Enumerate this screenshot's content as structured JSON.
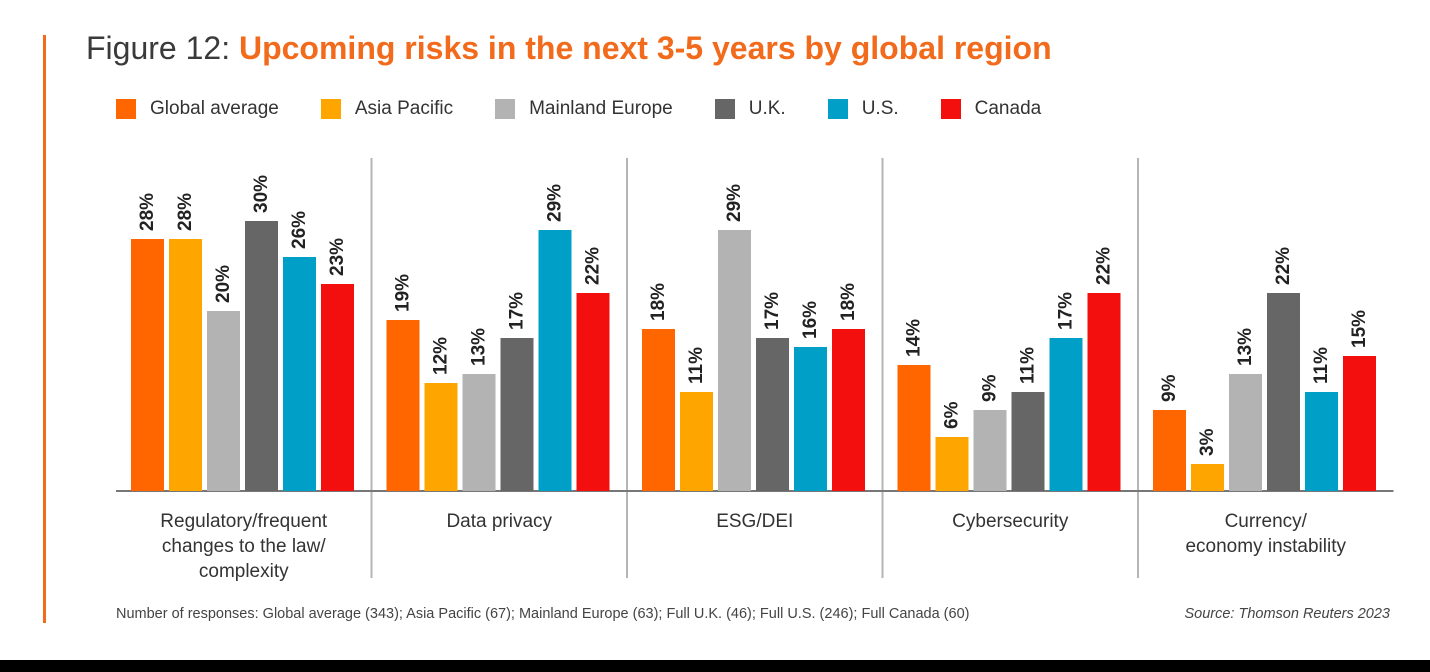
{
  "header": {
    "figure_label": "Figure 12:",
    "title": "Upcoming risks in the next 3-5 years by global region"
  },
  "colors": {
    "accent": "#f26a1b",
    "series": [
      "#ff6600",
      "#ffa500",
      "#b3b3b3",
      "#666666",
      "#009fc7",
      "#f40f0f"
    ]
  },
  "chart_data": {
    "type": "bar",
    "title": "Upcoming risks in the next 3-5 years by global region",
    "categories": [
      [
        "Regulatory/frequent",
        "changes to the law/",
        "complexity"
      ],
      [
        "Data privacy"
      ],
      [
        "ESG/DEI"
      ],
      [
        "Cybersecurity"
      ],
      [
        "Currency/",
        "economy instability"
      ]
    ],
    "series": [
      {
        "name": "Global average",
        "values": [
          28,
          19,
          18,
          14,
          9
        ]
      },
      {
        "name": "Asia Pacific",
        "values": [
          28,
          12,
          11,
          6,
          3
        ]
      },
      {
        "name": "Mainland Europe",
        "values": [
          20,
          13,
          29,
          9,
          13
        ]
      },
      {
        "name": "U.K.",
        "values": [
          30,
          17,
          17,
          11,
          22
        ]
      },
      {
        "name": "U.S.",
        "values": [
          26,
          29,
          16,
          17,
          11
        ]
      },
      {
        "name": "Canada",
        "values": [
          23,
          22,
          18,
          22,
          15
        ]
      }
    ],
    "value_suffix": "%",
    "ylim": [
      0,
      30
    ],
    "xlabel": "",
    "ylabel": "",
    "legend_position": "top"
  },
  "footer": {
    "note": "Number of responses: Global average (343); Asia Pacific (67); Mainland Europe (63); Full U.K. (46); Full U.S. (246); Full Canada (60)",
    "source": "Source: Thomson Reuters 2023"
  }
}
